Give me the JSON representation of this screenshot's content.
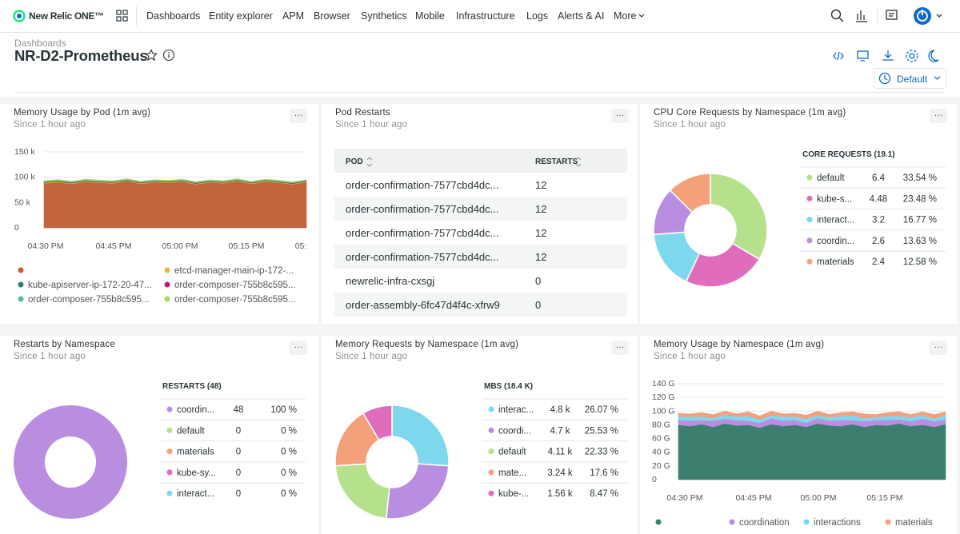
{
  "nav": {
    "brand": "New Relic ONE™",
    "items": [
      "Dashboards",
      "Entity explorer",
      "APM",
      "Browser",
      "Synthetics",
      "Mobile",
      "Infrastructure",
      "Logs",
      "Alerts & AI",
      "More"
    ]
  },
  "header": {
    "breadcrumb": "Dashboards",
    "title": "NR-D2-Prometheus",
    "time_range": "Default"
  },
  "widgets": [
    {
      "title": "Memory Usage by Pod (1m avg)",
      "subtitle": "Since 1 hour ago",
      "chart": {
        "type": "area",
        "stacked": true,
        "ylim": [
          0,
          150000
        ],
        "yticks": [
          0,
          {
            "value": 50000,
            "label": "50 k"
          },
          {
            "value": 100000,
            "label": "100 k"
          },
          {
            "value": 150000,
            "label": "150 k"
          }
        ],
        "xtick_labels": [
          "04:30 PM",
          "04:45 PM",
          "05:00 PM",
          "05:15 PM",
          "05:"
        ],
        "series": [
          {
            "name": null,
            "color": "#c0643c",
            "values": [
              88000,
              90000,
              87000,
              91000,
              89000,
              88000,
              92000,
              87000,
              90000,
              89000,
              91000,
              86000,
              90000,
              88000,
              92000,
              87000,
              91000,
              89000,
              86000,
              90000
            ]
          },
          {
            "name": "etcd-manager-main-ip-172-...",
            "color": "#f2b43a",
            "values": [
              1200,
              1300,
              1100,
              1250,
              1200,
              1150,
              1300,
              1200,
              1250,
              1100,
              1200,
              1300,
              1150,
              1200,
              1250,
              1100,
              1300,
              1200,
              1150,
              1250
            ]
          },
          {
            "name": "kube-apiserver-ip-172-20-47...",
            "color": "#2a7f6f",
            "values": [
              900,
              1000,
              950,
              1000,
              900,
              950,
              1000,
              900,
              950,
              1000,
              900,
              950,
              1000,
              900,
              950,
              1000,
              900,
              950,
              1000,
              900
            ]
          },
          {
            "name": "order-composer-755b8c595...",
            "color": "#c2187a",
            "values": [
              600,
              700,
              650,
              600,
              700,
              650,
              600,
              700,
              650,
              600,
              700,
              650,
              600,
              700,
              650,
              600,
              700,
              650,
              600,
              700
            ]
          },
          {
            "name": "order-composer-755b8c595...",
            "color": "#5bb8a0",
            "values": [
              800,
              850,
              900,
              800,
              850,
              900,
              800,
              850,
              900,
              800,
              850,
              900,
              800,
              850,
              900,
              800,
              850,
              900,
              800,
              850
            ]
          },
          {
            "name": "order-composer-755b8c595...",
            "color": "#a8d86a",
            "values": [
              1500,
              1600,
              1400,
              1500,
              1700,
              1500,
              1400,
              1600,
              1500,
              1500,
              1600,
              1400,
              1500,
              1700,
              1500,
              1400,
              1600,
              1500,
              1500,
              1600
            ]
          }
        ]
      }
    },
    {
      "title": "Pod Restarts",
      "subtitle": "Since 1 hour ago",
      "table": {
        "columns": [
          "POD",
          "RESTARTS"
        ],
        "rows": [
          [
            "order-confirmation-7577cbd4dc...",
            12
          ],
          [
            "order-confirmation-7577cbd4dc...",
            12
          ],
          [
            "order-confirmation-7577cbd4dc...",
            12
          ],
          [
            "order-confirmation-7577cbd4dc...",
            12
          ],
          [
            "newrelic-infra-cxsgj",
            0
          ],
          [
            "order-assembly-6fc47d4f4c-xfrw9",
            0
          ]
        ]
      }
    },
    {
      "title": "CPU Core Requests by Namespace (1m avg)",
      "subtitle": "Since 1 hour ago",
      "chart": {
        "type": "donut",
        "legend_title": "CORE REQUESTS (19.1)",
        "categories": [
          "default",
          "kube-s...",
          "interact...",
          "coordin...",
          "materials"
        ],
        "values": [
          6.4,
          4.48,
          3.2,
          2.6,
          2.4
        ],
        "colors": [
          "#b5e08c",
          "#e06cbc",
          "#7dd8ee",
          "#b98ee0",
          "#f4a07a"
        ],
        "percents": [
          33.54,
          23.48,
          16.77,
          13.63,
          12.58
        ],
        "percent_labels": [
          "33.54 %",
          "23.48 %",
          "16.77 %",
          "13.63 %",
          "12.58 %"
        ]
      }
    },
    {
      "title": "Restarts by Namespace",
      "subtitle": "Since 1 hour ago",
      "chart": {
        "type": "donut",
        "legend_title": "RESTARTS (48)",
        "categories": [
          "coordin...",
          "default",
          "materials",
          "kube-sy...",
          "interact..."
        ],
        "values": [
          48,
          0,
          0,
          0,
          0
        ],
        "colors": [
          "#b98ee0",
          "#b5e08c",
          "#f4a07a",
          "#e06cbc",
          "#7dd8ee"
        ],
        "percents": [
          100,
          0,
          0,
          0,
          0
        ],
        "percent_labels": [
          "100 %",
          "0 %",
          "0 %",
          "0 %",
          "0 %"
        ]
      }
    },
    {
      "title": "Memory Requests by Namespace (1m avg)",
      "subtitle": "Since 1 hour ago",
      "chart": {
        "type": "donut",
        "legend_title": "MBS (18.4 K)",
        "categories": [
          "interac...",
          "coordi...",
          "default",
          "mate...",
          "kube-..."
        ],
        "values": [
          4800,
          4700,
          4110,
          3240,
          1560
        ],
        "value_labels": [
          "4.8 k",
          "4.7 k",
          "4.11 k",
          "3.24 k",
          "1.56 k"
        ],
        "colors": [
          "#7dd8ee",
          "#b98ee0",
          "#b5e08c",
          "#f4a07a",
          "#e06cbc"
        ],
        "percents": [
          26.07,
          25.53,
          22.33,
          17.6,
          8.47
        ],
        "percent_labels": [
          "26.07 %",
          "25.53 %",
          "22.33 %",
          "17.6 %",
          "8.47 %"
        ]
      }
    },
    {
      "title": "Memory Usage by Namespace (1m avg)",
      "subtitle": "Since 1 hour ago",
      "chart": {
        "type": "area",
        "stacked": true,
        "ylim": [
          0,
          140
        ],
        "yticks": [
          0,
          {
            "value": 20,
            "label": "20 G"
          },
          {
            "value": 40,
            "label": "40 G"
          },
          {
            "value": 60,
            "label": "60 G"
          },
          {
            "value": 80,
            "label": "80 G"
          },
          {
            "value": 100,
            "label": "100 G"
          },
          {
            "value": 120,
            "label": "120 G"
          },
          {
            "value": 140,
            "label": "140 G"
          }
        ],
        "xtick_labels": [
          "04:30 PM",
          "04:45 PM",
          "05:00 PM",
          "05:15 PM"
        ],
        "series": [
          {
            "name": null,
            "color": "#3d7f6e",
            "values": [
              80,
              78,
              81,
              77,
              82,
              79,
              80,
              76,
              81,
              78,
              80,
              77,
              82,
              79,
              78,
              81,
              77,
              80,
              79,
              82,
              78,
              80,
              77,
              81
            ]
          },
          {
            "name": "coordination",
            "color": "#b98ee0",
            "values": [
              7,
              8,
              6,
              9,
              7,
              8,
              6,
              7,
              9,
              8,
              7,
              6,
              8,
              7,
              9,
              6,
              8,
              7,
              8,
              6,
              7,
              9,
              8,
              7
            ]
          },
          {
            "name": "interactions",
            "color": "#7dd8ee",
            "values": [
              5,
              6,
              5,
              4,
              6,
              5,
              7,
              5,
              4,
              6,
              5,
              6,
              4,
              5,
              6,
              7,
              5,
              4,
              6,
              5,
              6,
              5,
              4,
              6
            ]
          },
          {
            "name": "materials",
            "color": "#f4a07a",
            "values": [
              5,
              4,
              6,
              5,
              5,
              4,
              6,
              5,
              6,
              4,
              5,
              5,
              6,
              4,
              5,
              5,
              6,
              4,
              5,
              6,
              4,
              5,
              6,
              5
            ]
          }
        ]
      }
    }
  ]
}
